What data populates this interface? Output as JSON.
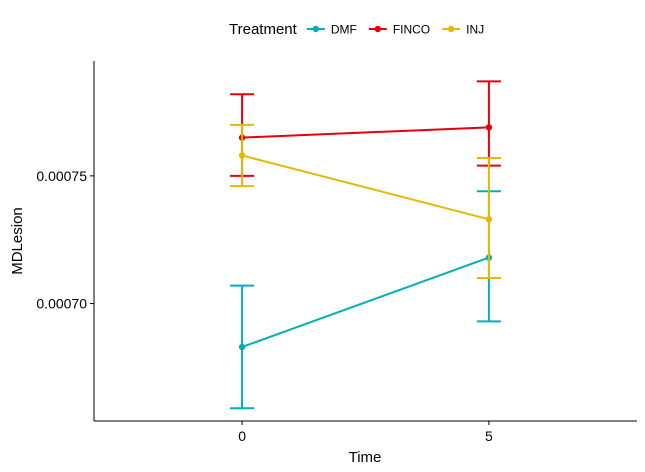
{
  "chart_data": {
    "type": "line",
    "xlabel": "Time",
    "ylabel": "MDLesion",
    "x": [
      0,
      5
    ],
    "xlim": [
      -3,
      8
    ],
    "ylim": [
      0.000654,
      0.000795
    ],
    "x_ticks": [
      0,
      5
    ],
    "x_tick_labels": [
      "0",
      "5"
    ],
    "y_ticks": [
      0.0007,
      0.00075
    ],
    "y_tick_labels": [
      "0.00070",
      "0.00075"
    ],
    "grid": false,
    "legend": {
      "title": "Treatment",
      "position": "top"
    },
    "series": [
      {
        "name": "DMF",
        "color": "#00AFBB",
        "values": [
          0.000683,
          0.000718
        ],
        "error_low": [
          0.000659,
          0.000693
        ],
        "error_high": [
          0.000707,
          0.000744
        ]
      },
      {
        "name": "FINCO",
        "color": "#E7000B",
        "values": [
          0.000765,
          0.000769
        ],
        "error_low": [
          0.00075,
          0.000754
        ],
        "error_high": [
          0.000782,
          0.000787
        ]
      },
      {
        "name": "INJ",
        "color": "#E7B800",
        "values": [
          0.000758,
          0.000733
        ],
        "error_low": [
          0.000746,
          0.00071
        ],
        "error_high": [
          0.00077,
          0.000757
        ]
      }
    ]
  }
}
